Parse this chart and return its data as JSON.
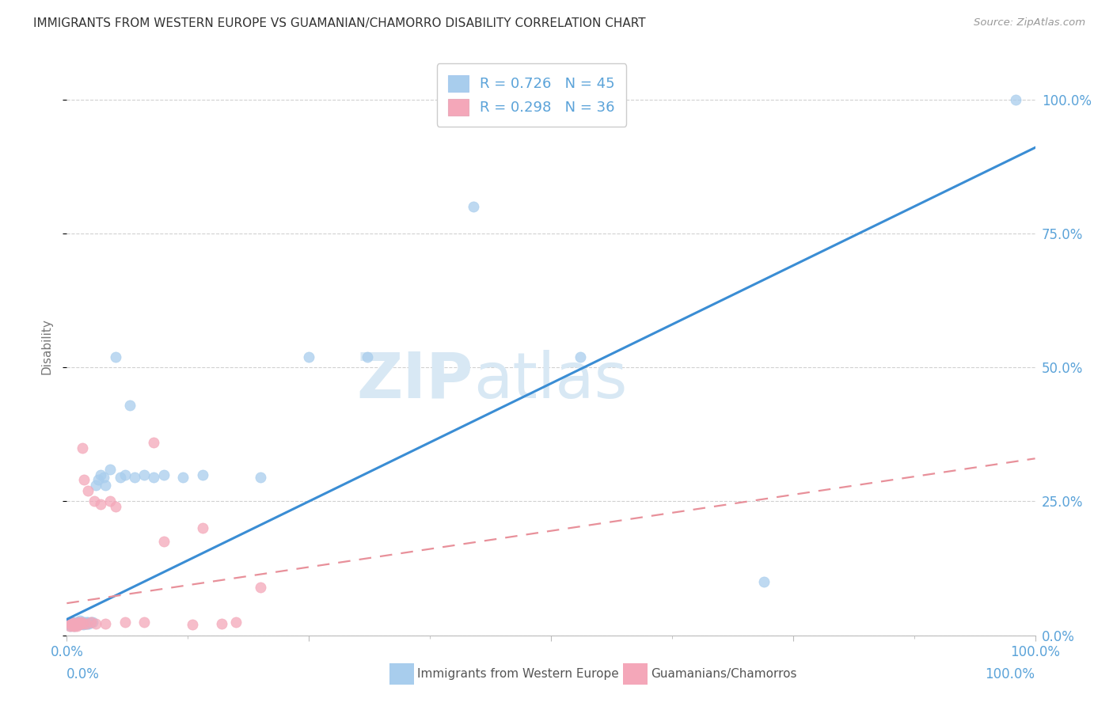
{
  "title": "IMMIGRANTS FROM WESTERN EUROPE VS GUAMANIAN/CHAMORRO DISABILITY CORRELATION CHART",
  "source": "Source: ZipAtlas.com",
  "ylabel": "Disability",
  "R1": 0.726,
  "N1": 45,
  "R2": 0.298,
  "N2": 36,
  "color_blue": "#A8CDED",
  "color_pink": "#F4A7B9",
  "color_line_blue": "#3A8DD4",
  "color_line_pink": "#E8909A",
  "color_axis_text": "#5BA3D9",
  "watermark_zip_color": "#D8E8F4",
  "watermark_atlas_color": "#D8E8F4",
  "legend_label1": "Immigrants from Western Europe",
  "legend_label2": "Guamanians/Chamorros",
  "blue_slope": 0.88,
  "blue_intercept": 0.03,
  "pink_slope": 0.27,
  "pink_intercept": 0.06,
  "blue_x": [
    0.003,
    0.004,
    0.005,
    0.006,
    0.007,
    0.008,
    0.009,
    0.01,
    0.011,
    0.013,
    0.014,
    0.015,
    0.016,
    0.017,
    0.018,
    0.019,
    0.02,
    0.021,
    0.022,
    0.023,
    0.025,
    0.027,
    0.03,
    0.032,
    0.035,
    0.038,
    0.04,
    0.045,
    0.05,
    0.055,
    0.06,
    0.065,
    0.07,
    0.08,
    0.09,
    0.1,
    0.12,
    0.14,
    0.2,
    0.25,
    0.31,
    0.42,
    0.53,
    0.72,
    0.98
  ],
  "blue_y": [
    0.02,
    0.018,
    0.022,
    0.025,
    0.02,
    0.018,
    0.022,
    0.025,
    0.02,
    0.022,
    0.028,
    0.025,
    0.022,
    0.02,
    0.025,
    0.022,
    0.025,
    0.022,
    0.025,
    0.022,
    0.025,
    0.025,
    0.28,
    0.29,
    0.3,
    0.295,
    0.28,
    0.31,
    0.52,
    0.295,
    0.3,
    0.43,
    0.295,
    0.3,
    0.295,
    0.3,
    0.295,
    0.3,
    0.295,
    0.52,
    0.52,
    0.8,
    0.52,
    0.1,
    1.0
  ],
  "pink_x": [
    0.003,
    0.004,
    0.005,
    0.005,
    0.006,
    0.007,
    0.008,
    0.008,
    0.009,
    0.01,
    0.011,
    0.012,
    0.013,
    0.014,
    0.015,
    0.016,
    0.017,
    0.018,
    0.02,
    0.022,
    0.025,
    0.028,
    0.03,
    0.035,
    0.04,
    0.045,
    0.05,
    0.06,
    0.08,
    0.09,
    0.1,
    0.13,
    0.14,
    0.16,
    0.175,
    0.2
  ],
  "pink_y": [
    0.018,
    0.022,
    0.02,
    0.025,
    0.018,
    0.022,
    0.018,
    0.022,
    0.02,
    0.018,
    0.022,
    0.025,
    0.02,
    0.022,
    0.025,
    0.35,
    0.022,
    0.29,
    0.022,
    0.27,
    0.025,
    0.25,
    0.022,
    0.245,
    0.022,
    0.25,
    0.24,
    0.025,
    0.025,
    0.36,
    0.175,
    0.02,
    0.2,
    0.022,
    0.025,
    0.09
  ]
}
